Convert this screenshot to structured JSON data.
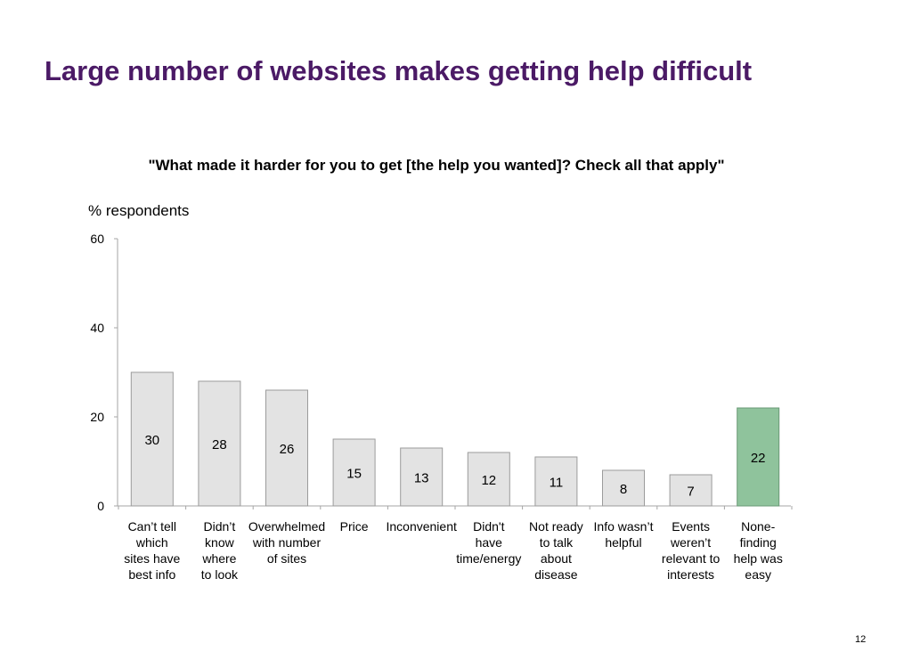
{
  "slide": {
    "title": "Large number of websites makes getting help difficult",
    "page_number": "12"
  },
  "colors": {
    "title": "#4b1a66",
    "bar_fill": "#e3e3e3",
    "bar_stroke": "#9b9b9b",
    "highlight_fill": "#8fc39c",
    "highlight_stroke": "#6a9a76",
    "axis": "#a6a6a6"
  },
  "chart_data": {
    "type": "bar",
    "title": "\"What made it harder for you to get  [the help you wanted]? Check all that apply\"",
    "xlabel": "",
    "ylabel": "% respondents",
    "ylim": [
      0,
      60
    ],
    "yticks": [
      0,
      20,
      40,
      60
    ],
    "grid": false,
    "legend": "none",
    "categories": [
      [
        "Can’t tell",
        "which",
        "sites have",
        "best info"
      ],
      [
        "Didn’t",
        "know",
        "where",
        "to look"
      ],
      [
        "Overwhelmed",
        "with number",
        "of sites"
      ],
      [
        "Price"
      ],
      [
        "Inconvenient"
      ],
      [
        "Didn't",
        "have",
        "time/energy"
      ],
      [
        "Not ready",
        "to  talk",
        "about",
        "disease"
      ],
      [
        "Info wasn’t",
        "helpful"
      ],
      [
        "Events",
        "weren’t",
        "relevant to",
        "interests"
      ],
      [
        "None-",
        "finding",
        "help was",
        "easy"
      ]
    ],
    "values": [
      30,
      28,
      26,
      15,
      13,
      12,
      11,
      8,
      7,
      22
    ],
    "highlight_index": 9
  }
}
